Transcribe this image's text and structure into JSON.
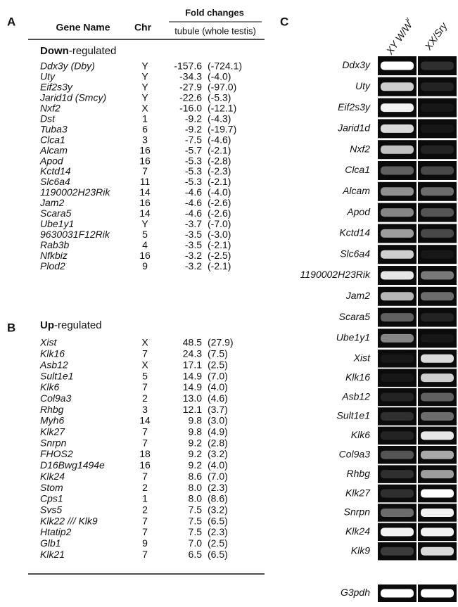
{
  "panel_a": {
    "letter": "A",
    "headers": {
      "gene": "Gene Name",
      "chr": "Chr",
      "fold": "Fold changes",
      "sub": "tubule (whole testis)"
    },
    "down_label": {
      "bold": "Down",
      "rest": "-regulated"
    },
    "down_rows": [
      [
        "Ddx3y (Dby)",
        "Y",
        "-157.6",
        "(-724.1)"
      ],
      [
        "Uty",
        "Y",
        "-34.3",
        "(-4.0)"
      ],
      [
        "Eif2s3y",
        "Y",
        "-27.9",
        "(-97.0)"
      ],
      [
        "Jarid1d (Smcy)",
        "Y",
        "-22.6",
        "(-5.3)"
      ],
      [
        "Nxf2",
        "X",
        "-16.0",
        "(-12.1)"
      ],
      [
        "Dst",
        "1",
        "-9.2",
        "(-4.3)"
      ],
      [
        "Tuba3",
        "6",
        "-9.2",
        "(-19.7)"
      ],
      [
        "Clca1",
        "3",
        "-7.5",
        "(-4.6)"
      ],
      [
        "Alcam",
        "16",
        "-5.7",
        "(-2.1)"
      ],
      [
        "Apod",
        "16",
        "-5.3",
        "(-2.8)"
      ],
      [
        "Kctd14",
        "7",
        "-5.3",
        "(-2.3)"
      ],
      [
        "Slc6a4",
        "11",
        "-5.3",
        "(-2.1)"
      ],
      [
        "1190002H23Rik",
        "14",
        "-4.6",
        "(-4.0)"
      ],
      [
        "Jam2",
        "16",
        "-4.6",
        "(-2.6)"
      ],
      [
        "Scara5",
        "14",
        "-4.6",
        "(-2.6)"
      ],
      [
        "Ube1y1",
        "Y",
        "-3.7",
        "(-7.0)"
      ],
      [
        "9630031F12Rik",
        "5",
        "-3.5",
        "(-3.0)"
      ],
      [
        "Rab3b",
        "4",
        "-3.5",
        "(-2.1)"
      ],
      [
        "Nfkbiz",
        "16",
        "-3.2",
        "(-2.5)"
      ],
      [
        "Plod2",
        "9",
        "-3.2",
        "(-2.1)"
      ]
    ]
  },
  "panel_b": {
    "letter": "B",
    "up_label": {
      "bold": "Up",
      "rest": "-regulated"
    },
    "up_rows": [
      [
        "Xist",
        "X",
        "48.5",
        "(27.9)"
      ],
      [
        "Klk16",
        "7",
        "24.3",
        "(7.5)"
      ],
      [
        "Asb12",
        "X",
        "17.1",
        "(2.5)"
      ],
      [
        "Sult1e1",
        "5",
        "14.9",
        "(7.0)"
      ],
      [
        "Klk6",
        "7",
        "14.9",
        "(4.0)"
      ],
      [
        "Col9a3",
        "2",
        "13.0",
        "(4.6)"
      ],
      [
        "Rhbg",
        "3",
        "12.1",
        "(3.7)"
      ],
      [
        "Myh6",
        "14",
        "9.8",
        "(3.0)"
      ],
      [
        "Klk27",
        "7",
        "9.8",
        "(4.9)"
      ],
      [
        "Snrpn",
        "7",
        "9.2",
        "(2.8)"
      ],
      [
        "FHOS2",
        "18",
        "9.2",
        "(3.2)"
      ],
      [
        "D16Bwg1494e",
        "16",
        "9.2",
        "(4.0)"
      ],
      [
        "Klk24",
        "7",
        "8.6",
        "(7.0)"
      ],
      [
        "Stom",
        "2",
        "8.0",
        "(2.3)"
      ],
      [
        "Cps1",
        "1",
        "8.0",
        "(8.6)"
      ],
      [
        "Svs5",
        "2",
        "7.5",
        "(3.2)"
      ],
      [
        "Klk22 /// Klk9",
        "7",
        "7.5",
        "(6.5)"
      ],
      [
        "Htatip2",
        "7",
        "7.5",
        "(2.3)"
      ],
      [
        "Glb1",
        "9",
        "7.0",
        "(2.5)"
      ],
      [
        "Klk21",
        "7",
        "6.5",
        "(6.5)"
      ]
    ]
  },
  "panel_c": {
    "letter": "C",
    "col1": {
      "main": "XY W/W",
      "sup": "v"
    },
    "col2": "XX/Sry",
    "down_genes": [
      "Ddx3y",
      "Uty",
      "Eif2s3y",
      "Jarid1d",
      "Nxf2",
      "Clca1",
      "Alcam",
      "Apod",
      "Kctd14",
      "Slc6a4",
      "1190002H23Rik",
      "Jam2",
      "Scara5",
      "Ube1y1"
    ],
    "up_genes": [
      "Xist",
      "Klk16",
      "Asb12",
      "Sult1e1",
      "Klk6",
      "Col9a3",
      "Rhbg",
      "Klk27",
      "Snrpn",
      "Klk24",
      "Klk9"
    ],
    "control": "G3pdh"
  }
}
